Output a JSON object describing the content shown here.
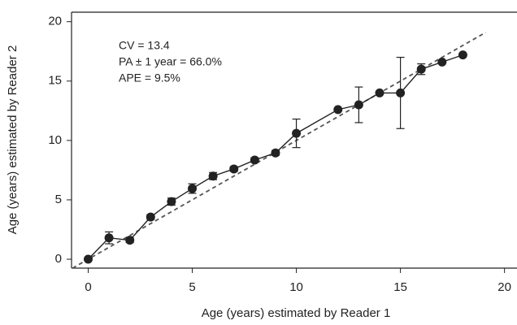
{
  "chart_data": {
    "type": "line",
    "x": [
      0,
      1,
      2,
      3,
      4,
      5,
      6,
      7,
      8,
      9,
      10,
      12,
      13,
      14,
      15,
      16,
      17,
      18
    ],
    "values": [
      0,
      1.8,
      1.6,
      3.55,
      4.85,
      5.95,
      7.0,
      7.6,
      8.35,
      8.95,
      10.6,
      12.6,
      13.0,
      14.0,
      14.0,
      16.0,
      16.6,
      17.2
    ],
    "errors": [
      null,
      0.5,
      0.2,
      0.2,
      0.3,
      0.4,
      0.3,
      0.2,
      0.2,
      0.2,
      1.2,
      null,
      1.5,
      null,
      3.0,
      0.45,
      null,
      null
    ],
    "color": "#222222",
    "reference_line": {
      "x": [
        -0.75,
        19.1
      ],
      "y": [
        -0.75,
        19.1
      ],
      "color": "#555555"
    },
    "xlim": [
      -0.8,
      20.6
    ],
    "ylim": [
      -0.75,
      20.8
    ],
    "xticks": [
      0,
      5,
      10,
      15,
      20
    ],
    "yticks": [
      0,
      5,
      10,
      15,
      20
    ],
    "xlabel": "Age (years) estimated by Reader 1",
    "ylabel": "Age (years) estimated by Reader 2",
    "annotations": [
      "CV = 13.4",
      "PA ± 1 year = 66.0%",
      "APE = 9.5%"
    ]
  }
}
